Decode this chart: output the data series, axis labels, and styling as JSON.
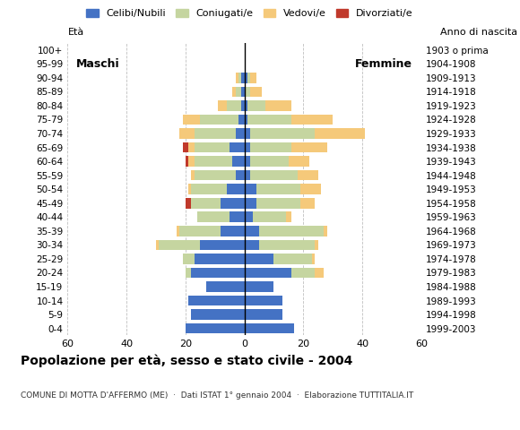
{
  "age_groups": [
    "0-4",
    "5-9",
    "10-14",
    "15-19",
    "20-24",
    "25-29",
    "30-34",
    "35-39",
    "40-44",
    "45-49",
    "50-54",
    "55-59",
    "60-64",
    "65-69",
    "70-74",
    "75-79",
    "80-84",
    "85-89",
    "90-94",
    "95-99",
    "100+"
  ],
  "birth_years": [
    "1999-2003",
    "1994-1998",
    "1989-1993",
    "1984-1988",
    "1979-1983",
    "1974-1978",
    "1969-1973",
    "1964-1968",
    "1959-1963",
    "1954-1958",
    "1949-1953",
    "1944-1948",
    "1939-1943",
    "1934-1938",
    "1929-1933",
    "1924-1928",
    "1919-1923",
    "1914-1918",
    "1909-1913",
    "1904-1908",
    "1903 o prima"
  ],
  "male_celibe": [
    20,
    18,
    19,
    13,
    18,
    17,
    15,
    8,
    5,
    8,
    6,
    3,
    4,
    5,
    3,
    2,
    1,
    1,
    1,
    0,
    0
  ],
  "male_coniugato": [
    0,
    0,
    0,
    0,
    2,
    4,
    14,
    14,
    11,
    10,
    12,
    14,
    13,
    12,
    14,
    13,
    5,
    2,
    1,
    0,
    0
  ],
  "male_vedovo": [
    0,
    0,
    0,
    0,
    0,
    0,
    1,
    1,
    0,
    0,
    1,
    1,
    2,
    2,
    5,
    6,
    3,
    1,
    1,
    0,
    0
  ],
  "male_divorziato": [
    0,
    0,
    0,
    0,
    0,
    0,
    0,
    0,
    0,
    2,
    0,
    0,
    1,
    2,
    0,
    0,
    0,
    0,
    0,
    0,
    0
  ],
  "female_celibe": [
    17,
    13,
    13,
    10,
    16,
    10,
    5,
    5,
    3,
    4,
    4,
    2,
    2,
    2,
    2,
    1,
    1,
    0,
    1,
    0,
    0
  ],
  "female_coniugato": [
    0,
    0,
    0,
    0,
    8,
    13,
    19,
    22,
    11,
    15,
    15,
    16,
    13,
    14,
    22,
    15,
    6,
    2,
    1,
    0,
    0
  ],
  "female_vedovo": [
    0,
    0,
    0,
    0,
    3,
    1,
    1,
    1,
    2,
    5,
    7,
    7,
    7,
    12,
    17,
    14,
    9,
    4,
    2,
    0,
    0
  ],
  "female_divorziato": [
    0,
    0,
    0,
    0,
    0,
    0,
    0,
    0,
    0,
    0,
    0,
    0,
    0,
    0,
    0,
    0,
    0,
    0,
    0,
    0,
    0
  ],
  "colors": {
    "celibe": "#4472C4",
    "coniugato": "#C5D5A0",
    "vedovo": "#F5C97A",
    "divorziato": "#C0392B"
  },
  "title": "Popolazione per età, sesso e stato civile - 2004",
  "subtitle": "COMUNE DI MOTTA D'AFFERMO (ME)  ·  Dati ISTAT 1° gennaio 2004  ·  Elaborazione TUTTITALIA.IT",
  "xlim": 60,
  "legend_labels": [
    "Celibi/Nubili",
    "Coniugati/e",
    "Vedovi/e",
    "Divorziati/e"
  ]
}
